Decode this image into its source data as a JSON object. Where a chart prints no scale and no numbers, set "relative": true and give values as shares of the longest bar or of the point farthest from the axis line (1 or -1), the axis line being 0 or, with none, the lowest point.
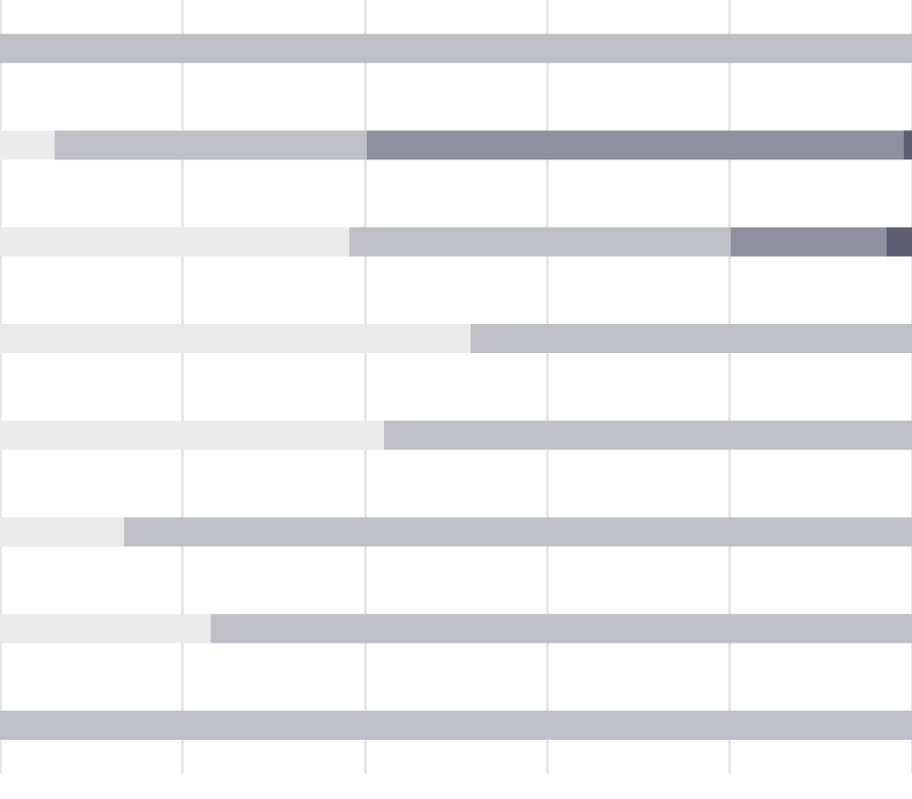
{
  "chart_data": {
    "type": "bar",
    "orientation": "horizontal",
    "stacked": true,
    "relative": true,
    "grid": "x",
    "categories": [
      null,
      null,
      null,
      null,
      null,
      null,
      null,
      null
    ],
    "series": [
      {
        "color": "#ebebeb",
        "values": [
          null,
          0.06,
          0.383,
          0.516,
          0.421,
          0.136,
          0.231,
          null
        ]
      },
      {
        "color": "#bfbfc6",
        "values": [
          1,
          0.342,
          0.418,
          0.484,
          0.579,
          0.864,
          0.769,
          1
        ]
      },
      {
        "color": "#8f8f9e",
        "values": [
          null,
          0.589,
          0.171,
          null,
          null,
          null,
          null,
          null
        ]
      },
      {
        "color": "#5f5f73",
        "values": [
          null,
          0.009,
          0.028,
          null,
          null,
          null,
          null,
          null
        ]
      }
    ]
  }
}
